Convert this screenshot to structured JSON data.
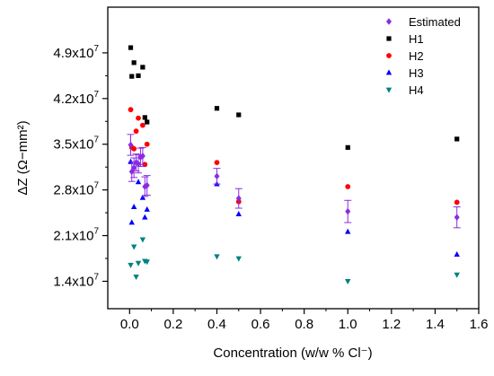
{
  "chart_data": {
    "type": "scatter",
    "title": "",
    "xlabel": "Concentration (w/w % Cl⁻)",
    "ylabel": "ΔZ (Ω−mm²)",
    "xlim": [
      -0.1,
      1.6
    ],
    "ylim": [
      9800000,
      56000000
    ],
    "x_ticks": [
      0.0,
      0.2,
      0.4,
      0.6,
      0.8,
      1.0,
      1.2,
      1.4,
      1.6
    ],
    "x_tick_labels": [
      "0.0",
      "0.2",
      "0.4",
      "0.6",
      "0.8",
      "1.0",
      "1.2",
      "1.4",
      "1.6"
    ],
    "y_ticks": [
      14000000,
      21000000,
      28000000,
      35000000,
      42000000,
      49000000
    ],
    "y_tick_labels": [
      {
        "mantissa": "1.4x10",
        "exp": "7"
      },
      {
        "mantissa": "2.1x10",
        "exp": "7"
      },
      {
        "mantissa": "2.8x10",
        "exp": "7"
      },
      {
        "mantissa": "3.5x10",
        "exp": "7"
      },
      {
        "mantissa": "4.2x10",
        "exp": "7"
      },
      {
        "mantissa": "4.9x10",
        "exp": "7"
      }
    ],
    "grid": false,
    "legend_position": "top-right",
    "series": [
      {
        "name": "Estimated",
        "marker": "diamond",
        "color": "#8A2BE2",
        "points": [
          {
            "x": 0.005,
            "y": 34900000,
            "err": 1600000
          },
          {
            "x": 0.01,
            "y": 30800000,
            "err": 1500000
          },
          {
            "x": 0.02,
            "y": 31400000,
            "err": 1500000
          },
          {
            "x": 0.03,
            "y": 32200000,
            "err": 1300000
          },
          {
            "x": 0.04,
            "y": 32000000,
            "err": 1400000
          },
          {
            "x": 0.05,
            "y": 33000000,
            "err": 1400000
          },
          {
            "x": 0.06,
            "y": 33200000,
            "err": 1300000
          },
          {
            "x": 0.07,
            "y": 28500000,
            "err": 1500000
          },
          {
            "x": 0.08,
            "y": 28700000,
            "err": 1500000
          },
          {
            "x": 0.4,
            "y": 30100000,
            "err": 1200000
          },
          {
            "x": 0.5,
            "y": 26700000,
            "err": 1500000
          },
          {
            "x": 1.0,
            "y": 24700000,
            "err": 1700000
          },
          {
            "x": 1.5,
            "y": 23800000,
            "err": 1600000
          }
        ]
      },
      {
        "name": "H1",
        "marker": "square",
        "color": "#000000",
        "points": [
          {
            "x": 0.005,
            "y": 49800000
          },
          {
            "x": 0.01,
            "y": 45400000
          },
          {
            "x": 0.02,
            "y": 47500000
          },
          {
            "x": 0.04,
            "y": 45500000
          },
          {
            "x": 0.06,
            "y": 46800000
          },
          {
            "x": 0.07,
            "y": 39100000
          },
          {
            "x": 0.08,
            "y": 38400000
          },
          {
            "x": 0.4,
            "y": 40500000
          },
          {
            "x": 0.5,
            "y": 39500000
          },
          {
            "x": 1.0,
            "y": 34500000
          },
          {
            "x": 1.5,
            "y": 35800000
          }
        ]
      },
      {
        "name": "H2",
        "marker": "circle",
        "color": "#FF0000",
        "points": [
          {
            "x": 0.005,
            "y": 40300000
          },
          {
            "x": 0.01,
            "y": 34500000
          },
          {
            "x": 0.02,
            "y": 34300000
          },
          {
            "x": 0.03,
            "y": 37000000
          },
          {
            "x": 0.04,
            "y": 39000000
          },
          {
            "x": 0.06,
            "y": 37900000
          },
          {
            "x": 0.07,
            "y": 31900000
          },
          {
            "x": 0.08,
            "y": 35000000
          },
          {
            "x": 0.4,
            "y": 32200000
          },
          {
            "x": 0.5,
            "y": 26200000
          },
          {
            "x": 1.0,
            "y": 28500000
          },
          {
            "x": 1.5,
            "y": 26100000
          }
        ]
      },
      {
        "name": "H3",
        "marker": "triangle-up",
        "color": "#0000FF",
        "points": [
          {
            "x": 0.005,
            "y": 32300000
          },
          {
            "x": 0.01,
            "y": 23000000
          },
          {
            "x": 0.02,
            "y": 25400000
          },
          {
            "x": 0.03,
            "y": 32200000
          },
          {
            "x": 0.04,
            "y": 29200000
          },
          {
            "x": 0.06,
            "y": 26800000
          },
          {
            "x": 0.07,
            "y": 23800000
          },
          {
            "x": 0.08,
            "y": 25000000
          },
          {
            "x": 0.4,
            "y": 28900000
          },
          {
            "x": 0.5,
            "y": 24300000
          },
          {
            "x": 1.0,
            "y": 21600000
          },
          {
            "x": 1.5,
            "y": 18100000
          }
        ]
      },
      {
        "name": "H4",
        "marker": "triangle-down",
        "color": "#008080",
        "points": [
          {
            "x": 0.005,
            "y": 16500000
          },
          {
            "x": 0.02,
            "y": 19300000
          },
          {
            "x": 0.03,
            "y": 14700000
          },
          {
            "x": 0.04,
            "y": 16800000
          },
          {
            "x": 0.06,
            "y": 20400000
          },
          {
            "x": 0.07,
            "y": 17100000
          },
          {
            "x": 0.08,
            "y": 17000000
          },
          {
            "x": 0.4,
            "y": 17800000
          },
          {
            "x": 0.5,
            "y": 17500000
          },
          {
            "x": 1.0,
            "y": 14000000
          },
          {
            "x": 1.5,
            "y": 15000000
          }
        ]
      }
    ]
  }
}
